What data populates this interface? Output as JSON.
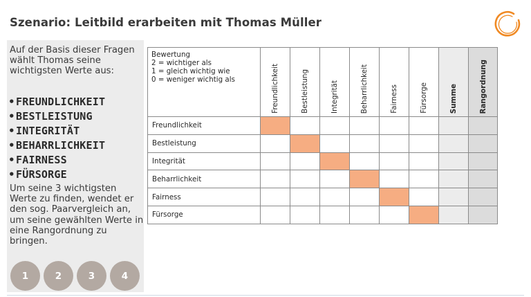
{
  "header": {
    "title": "Szenario: Leitbild erarbeiten mit Thomas Müller"
  },
  "sidebar": {
    "intro": "Auf der Basis dieser Fragen wählt Thomas seine wichtigsten Werte aus:",
    "values": [
      "FREUNDLICHKEIT",
      "BESTLEISTUNG",
      "INTEGRITÄT",
      "BEHARRLICHKEIT",
      "FAIRNESS",
      "FÜRSORGE"
    ],
    "outro": "Um seine 3 wichtigsten Werte zu finden, wendet er den sog. Paarvergleich an, um seine gewählten Werte in eine Rangordnung zu bringen.",
    "nav_buttons": [
      "1",
      "2",
      "3",
      "4"
    ]
  },
  "matrix": {
    "legend": [
      "Bewertung",
      "2 = wichtiger als",
      "1 = gleich wichtig wie",
      "0 = weniger wichtig als"
    ],
    "columns": [
      "Freundlichkeit",
      "Bestleistung",
      "Integrität",
      "Beharrlichkeit",
      "Fairness",
      "Fürsorge"
    ],
    "sum_label": "Summe",
    "rank_label": "Rangordnung",
    "rows": [
      "Freundlichkeit",
      "Bestleistung",
      "Integrität",
      "Beharrlichkeit",
      "Fairness",
      "Fürsorge"
    ]
  },
  "colors": {
    "diagonal": "#f6ad82",
    "sidebar_bg": "#ececec",
    "nav_button": "#b3a9a2",
    "logo": "#f08a24"
  }
}
